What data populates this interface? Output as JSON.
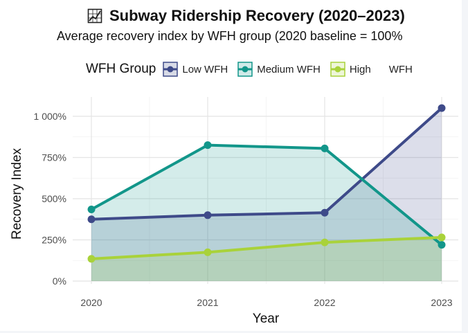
{
  "chart_data": {
    "type": "area",
    "title": "Subway Ridership Recovery (2020–2023)",
    "subtitle": "Average recovery index by WFH group (2020 baseline = 100%",
    "xlabel": "Year",
    "ylabel": "Recovery Index",
    "legend_title": "WFH Group",
    "legend_position": "top",
    "grid": true,
    "x": [
      "2020",
      "2021",
      "2022",
      "2023"
    ],
    "yticks": [
      "0%",
      "250%",
      "500%",
      "750%",
      "1 000%"
    ],
    "ytick_values": [
      0,
      250,
      500,
      750,
      1000
    ],
    "ylim": [
      0,
      1050
    ],
    "series": [
      {
        "name": "Low WFH",
        "color": "#3e4a89",
        "values": [
          375,
          400,
          415,
          1050
        ]
      },
      {
        "name": "Medium WFH",
        "color": "#12968a",
        "values": [
          435,
          825,
          805,
          220
        ]
      },
      {
        "name": "High",
        "legend_extra": "WFH",
        "color": "#a9d23a",
        "values": [
          135,
          175,
          235,
          265
        ]
      }
    ]
  }
}
